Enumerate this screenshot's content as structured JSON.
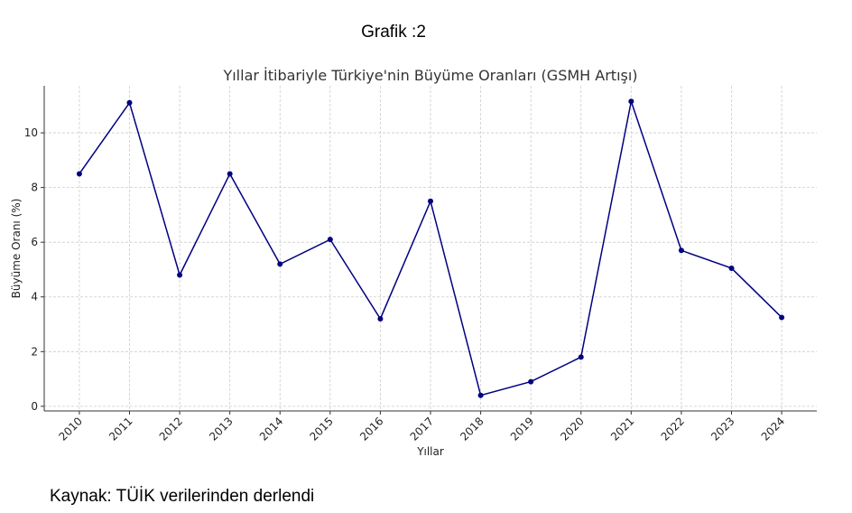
{
  "header": {
    "title": "Grafik :2"
  },
  "chart_data": {
    "type": "line",
    "title": "Yıllar İtibariyle Türkiye'nin Büyüme Oranları (GSMH Artışı)",
    "x_label": "Yıllar",
    "y_label": "Büyüme Oranı (%)",
    "x": [
      2010,
      2011,
      2012,
      2013,
      2014,
      2015,
      2016,
      2017,
      2018,
      2019,
      2020,
      2021,
      2022,
      2023,
      2024
    ],
    "values": [
      8.5,
      11.1,
      4.8,
      8.5,
      5.2,
      6.1,
      3.2,
      7.5,
      0.4,
      0.9,
      1.8,
      11.15,
      5.7,
      5.05,
      3.25
    ],
    "color": "#000080",
    "xlim": [
      2009.3,
      2024.7
    ],
    "xticks": [
      2010,
      2011,
      2012,
      2013,
      2014,
      2015,
      2016,
      2017,
      2018,
      2019,
      2020,
      2021,
      2022,
      2023,
      2024
    ],
    "ylim": [
      -0.17,
      11.72
    ],
    "yticks": [
      0,
      2,
      4,
      6,
      8,
      10
    ],
    "grid": true
  },
  "footer": {
    "source": "Kaynak: TÜİK verilerinden derlendi"
  }
}
